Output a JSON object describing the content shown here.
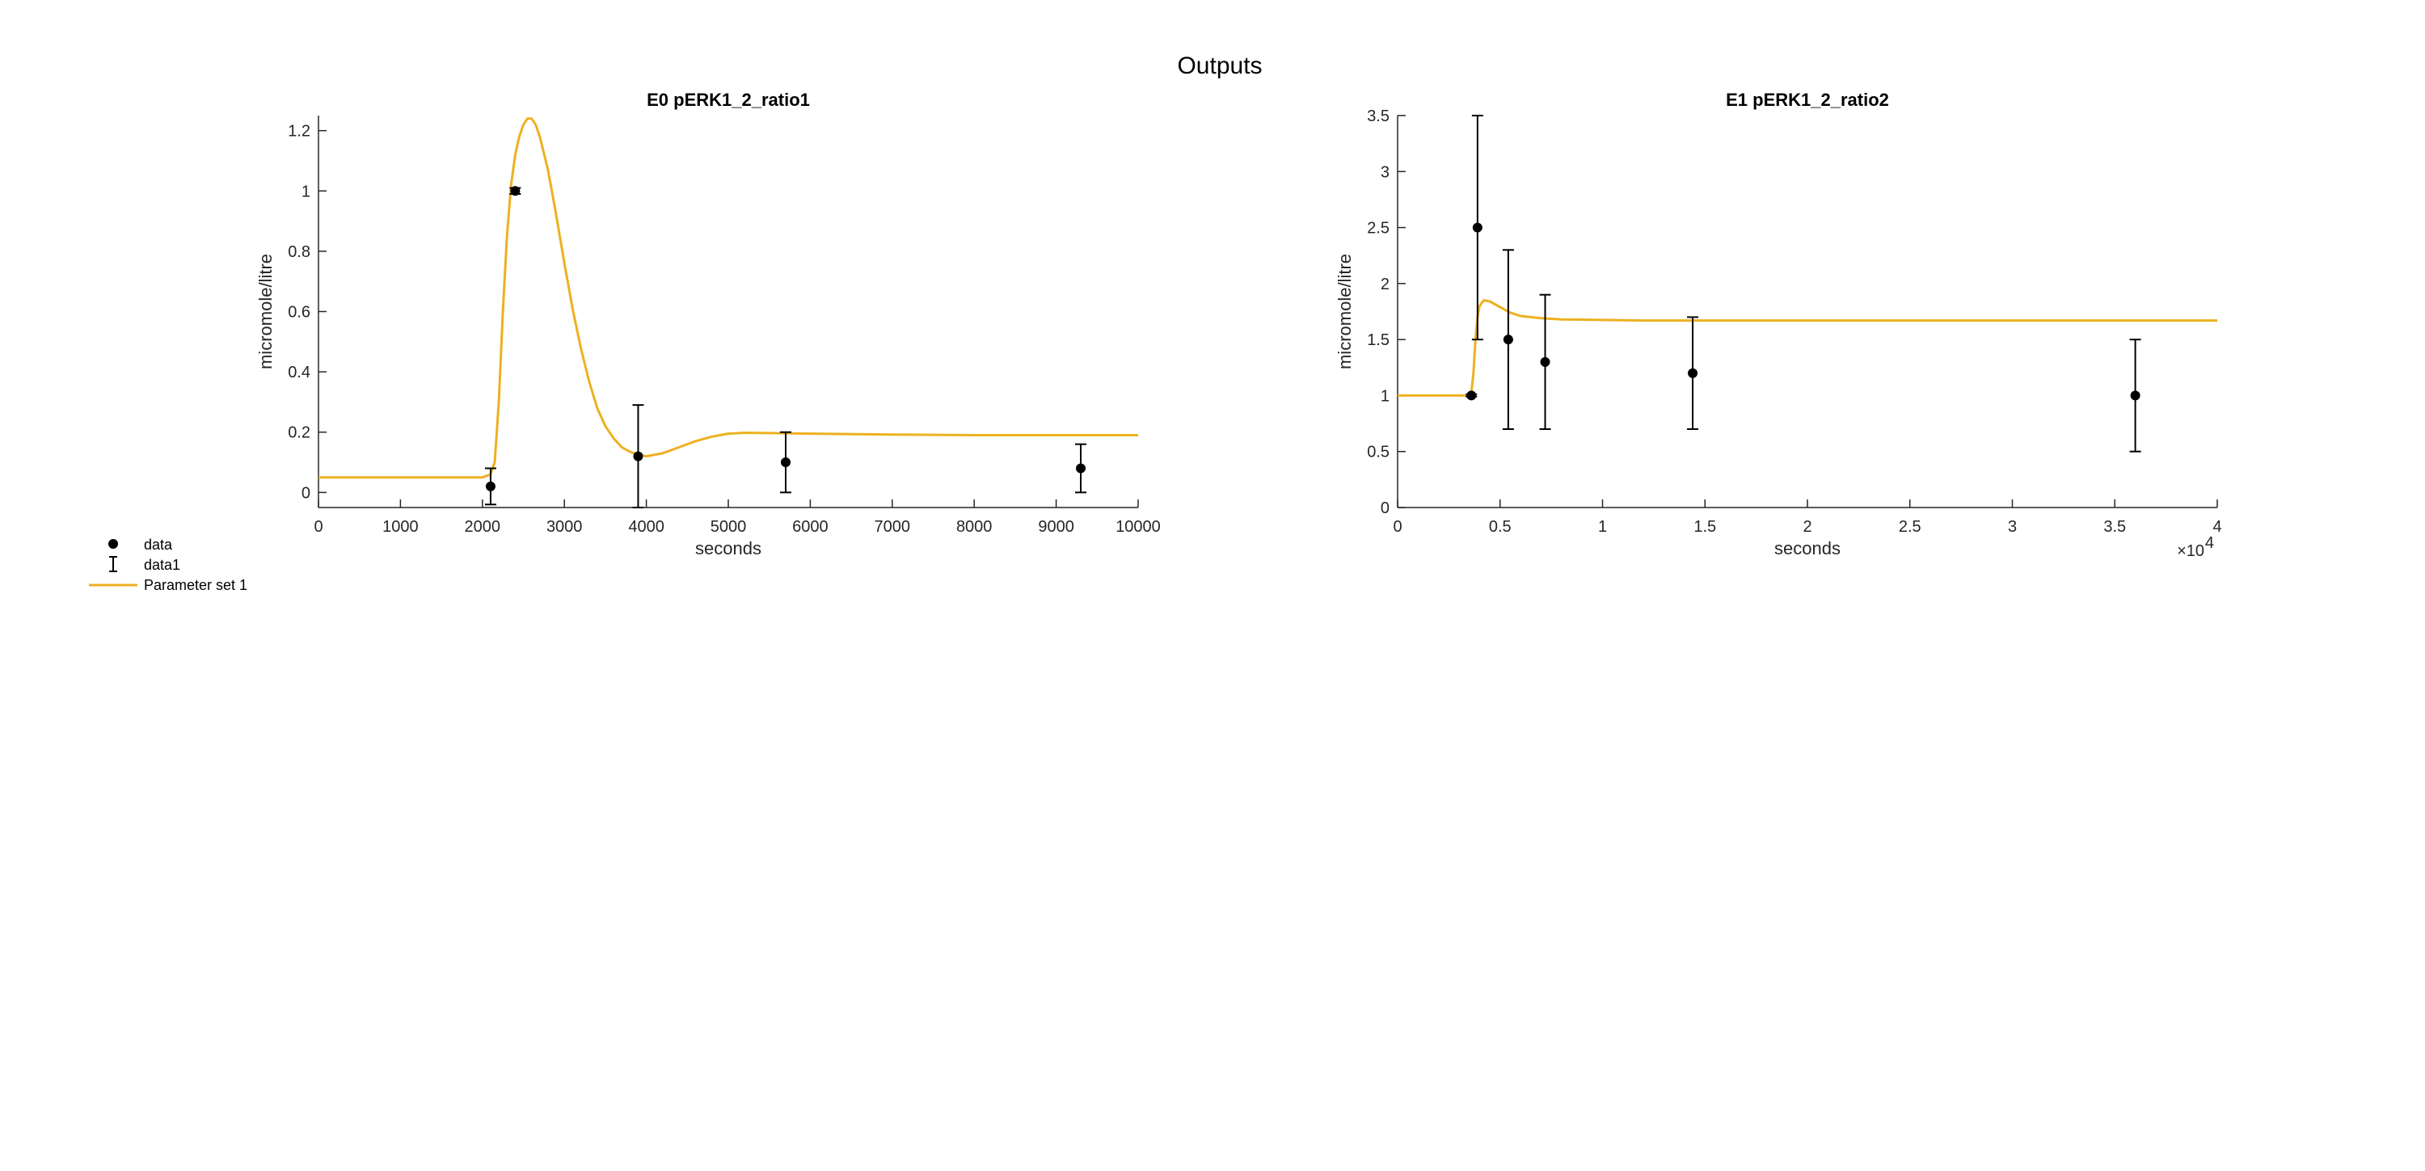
{
  "figure": {
    "title": "Outputs"
  },
  "legend": {
    "placement": "bottom-left",
    "entries": [
      {
        "label": "data",
        "marker": "dot"
      },
      {
        "label": "data1",
        "marker": "errorbar"
      },
      {
        "label": "Parameter set 1",
        "marker": "line",
        "color": "#EDB120"
      }
    ]
  },
  "colors": {
    "curve": "#EDB120",
    "data": "#000000",
    "axis": "#262626"
  },
  "chart_data": [
    {
      "type": "line",
      "title": "E0 pERK1_2_ratio1",
      "xlabel": "seconds",
      "ylabel": "micromole/litre",
      "xlim": [
        0,
        10000
      ],
      "ylim": [
        -0.05,
        1.25
      ],
      "xticks": [
        0,
        1000,
        2000,
        3000,
        4000,
        5000,
        6000,
        7000,
        8000,
        9000,
        10000
      ],
      "xtick_labels": [
        "0",
        "1000",
        "2000",
        "3000",
        "4000",
        "5000",
        "6000",
        "7000",
        "8000",
        "9000",
        "10000"
      ],
      "yticks": [
        0,
        0.2,
        0.4,
        0.6,
        0.8,
        1,
        1.2
      ],
      "ytick_labels": [
        "0",
        "0.2",
        "0.4",
        "0.6",
        "0.8",
        "1",
        "1.2"
      ],
      "x_exponent": "",
      "data_points": [
        {
          "x": 2100,
          "y": 0.02,
          "lower": -0.04,
          "upper": 0.08
        },
        {
          "x": 2400,
          "y": 1.0,
          "lower": 0.99,
          "upper": 1.01
        },
        {
          "x": 3900,
          "y": 0.12,
          "lower": -0.05,
          "upper": 0.29
        },
        {
          "x": 5700,
          "y": 0.1,
          "lower": 0.0,
          "upper": 0.2
        },
        {
          "x": 9300,
          "y": 0.08,
          "lower": 0.0,
          "upper": 0.16
        }
      ],
      "series": [
        {
          "x": [
            0,
            2000,
            2100,
            2150,
            2200,
            2250,
            2300,
            2350,
            2400,
            2450,
            2500,
            2550,
            2600,
            2650,
            2700,
            2800,
            2900,
            3000,
            3100,
            3200,
            3300,
            3400,
            3500,
            3600,
            3700,
            3800,
            3900,
            4000,
            4200,
            4400,
            4600,
            4800,
            5000,
            5200,
            5500,
            6000,
            7000,
            8000,
            9000,
            10000
          ],
          "y": [
            0.05,
            0.05,
            0.06,
            0.1,
            0.3,
            0.6,
            0.85,
            1.02,
            1.12,
            1.18,
            1.22,
            1.24,
            1.24,
            1.22,
            1.18,
            1.07,
            0.92,
            0.76,
            0.61,
            0.48,
            0.37,
            0.28,
            0.22,
            0.18,
            0.15,
            0.135,
            0.125,
            0.12,
            0.13,
            0.15,
            0.17,
            0.185,
            0.195,
            0.198,
            0.197,
            0.195,
            0.192,
            0.19,
            0.19,
            0.19
          ]
        }
      ]
    },
    {
      "type": "line",
      "title": "E1 pERK1_2_ratio2",
      "xlabel": "seconds",
      "ylabel": "micromole/litre",
      "xlim": [
        0,
        40000
      ],
      "ylim": [
        0,
        3.5
      ],
      "xticks": [
        0,
        5000,
        10000,
        15000,
        20000,
        25000,
        30000,
        35000,
        40000
      ],
      "xtick_labels": [
        "0",
        "0.5",
        "1",
        "1.5",
        "2",
        "2.5",
        "3",
        "3.5",
        "4"
      ],
      "yticks": [
        0,
        0.5,
        1,
        1.5,
        2,
        2.5,
        3,
        3.5
      ],
      "ytick_labels": [
        "0",
        "0.5",
        "1",
        "1.5",
        "2",
        "2.5",
        "3",
        "3.5"
      ],
      "x_exponent": "×10",
      "x_exponent_power": "4",
      "data_points": [
        {
          "x": 3600,
          "y": 1.0,
          "lower": 0.99,
          "upper": 1.01
        },
        {
          "x": 3900,
          "y": 2.5,
          "lower": 1.5,
          "upper": 3.5
        },
        {
          "x": 5400,
          "y": 1.5,
          "lower": 0.7,
          "upper": 2.3
        },
        {
          "x": 7200,
          "y": 1.3,
          "lower": 0.7,
          "upper": 1.9
        },
        {
          "x": 14400,
          "y": 1.2,
          "lower": 0.7,
          "upper": 1.7
        },
        {
          "x": 36000,
          "y": 1.0,
          "lower": 0.5,
          "upper": 1.5
        }
      ],
      "series": [
        {
          "x": [
            0,
            3500,
            3600,
            3700,
            3800,
            3900,
            4000,
            4200,
            4500,
            5000,
            5500,
            6000,
            7000,
            8000,
            10000,
            12000,
            15000,
            20000,
            30000,
            40000
          ],
          "y": [
            1.0,
            1.0,
            1.03,
            1.2,
            1.5,
            1.7,
            1.8,
            1.85,
            1.84,
            1.79,
            1.74,
            1.71,
            1.69,
            1.68,
            1.675,
            1.67,
            1.67,
            1.67,
            1.67,
            1.67
          ]
        }
      ]
    }
  ]
}
